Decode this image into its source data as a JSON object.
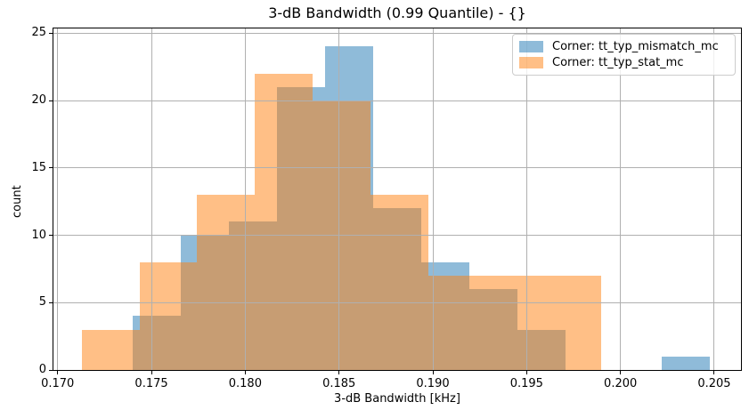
{
  "chart_data": {
    "type": "histogram",
    "title": "3-dB Bandwidth (0.99 Quantile) - {}",
    "xlabel": "3-dB Bandwidth [kHz]",
    "ylabel": "count",
    "xlim": [
      0.169776,
      0.206425
    ],
    "ylim": [
      0,
      25.35
    ],
    "x_ticks": [
      0.17,
      0.175,
      0.18,
      0.185,
      0.19,
      0.195,
      0.2,
      0.205
    ],
    "x_tick_labels": [
      "0.170",
      "0.175",
      "0.180",
      "0.185",
      "0.190",
      "0.195",
      "0.200",
      "0.205"
    ],
    "y_ticks": [
      0,
      5,
      10,
      15,
      20,
      25
    ],
    "y_tick_labels": [
      "0",
      "5",
      "10",
      "15",
      "20",
      "25"
    ],
    "grid": true,
    "grid_color": "#b0b0b0",
    "legend_position": "upper right",
    "series": [
      {
        "name": "Corner: tt_typ_mismatch_mc",
        "color": "#1f77b4",
        "alpha": 0.5,
        "bin_start": 0.174,
        "bin_width": 0.002562,
        "counts": [
          4,
          10,
          11,
          21,
          24,
          12,
          8,
          6,
          3,
          0,
          0,
          1
        ]
      },
      {
        "name": "Corner: tt_typ_stat_mc",
        "color": "#ff7f0e",
        "alpha": 0.5,
        "bin_start": 0.17128,
        "bin_width": 0.003078,
        "counts": [
          3,
          8,
          13,
          22,
          20,
          13,
          7,
          7,
          7
        ]
      }
    ]
  }
}
